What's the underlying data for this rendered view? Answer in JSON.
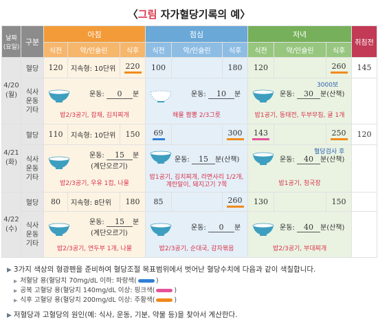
{
  "title": {
    "open": "〈",
    "highlight": "그림",
    "rest": " 자가혈당기록의 예〉"
  },
  "header": {
    "date": "날짜",
    "date_sub": "(요일)",
    "gubun": "구분",
    "am": "아침",
    "pm": "점심",
    "ev": "저녁",
    "bed": "취침전",
    "before": "식전",
    "insulin": "약/인슐린",
    "after": "식후"
  },
  "rows": [
    {
      "date": "4/20",
      "day": "(월)",
      "bg_label": "혈당",
      "sub_label_1": "식사",
      "sub_label_2": "운동",
      "sub_label_3": "기타",
      "am_before": "120",
      "am_insulin": "지속형: 10단위",
      "am_after": "220",
      "pm_before": "100",
      "pm_insulin": "",
      "pm_after": "180",
      "ev_before": "120",
      "ev_insulin": "",
      "ev_after": "260",
      "bed": "145",
      "am_ex_label": "운동:",
      "am_ex_val": "0",
      "am_ex_unit": "분",
      "am_meal": "밥2/3공기, 잡채, 김치찌개",
      "pm_ex_label": "운동:",
      "pm_ex_val": "10",
      "pm_ex_unit": "분",
      "pm_meal": "해물 짬뽕 2/3그릇",
      "ev_ex_label": "운동:",
      "ev_ex_val": "30",
      "ev_ex_unit": "분(산책)",
      "ev_extra": "3000보",
      "ev_meal": "밥1공기, 동태전, 두부무침, 귤 1개"
    },
    {
      "date": "4/21",
      "day": "(화)",
      "bg_label": "혈당",
      "sub_label_1": "식사",
      "sub_label_2": "운동",
      "sub_label_3": "기타",
      "am_before": "110",
      "am_insulin": "지속형: 10단위",
      "am_after": "150",
      "pm_before": "69",
      "pm_insulin": "",
      "pm_after": "300",
      "ev_before": "143",
      "ev_insulin": "",
      "ev_after": "250",
      "bed": "120",
      "am_ex_label": "운동:",
      "am_ex_val": "15",
      "am_ex_unit": "분",
      "am_ex_note": "(계단오르기)",
      "am_meal": "밥2/3공기, 우유 1컵, 나물",
      "pm_ex_label": "운동:",
      "pm_ex_val": "15",
      "pm_ex_unit": "분(산책)",
      "pm_meal_1": "밥1공기, 김치찌개, 라면사리 1/2개,",
      "pm_meal_2": "계란말이, 돼지고기 7쪽",
      "ev_ex_label": "운동:",
      "ev_ex_val": "40",
      "ev_ex_unit": "분(산책)",
      "ev_extra": "혈당검사 후",
      "ev_meal": "밥1공기, 청국장"
    },
    {
      "date": "4/22",
      "day": "(수)",
      "bg_label": "혈당",
      "sub_label_1": "식사",
      "sub_label_2": "운동",
      "sub_label_3": "기타",
      "am_before": "80",
      "am_insulin": "지속형: 8단위",
      "am_after": "180",
      "pm_before": "85",
      "pm_insulin": "",
      "pm_after": "260",
      "ev_before": "130",
      "ev_insulin": "",
      "ev_after": "150",
      "bed": "",
      "am_ex_label": "운동:",
      "am_ex_val": "15",
      "am_ex_unit": "분",
      "am_ex_note": "(계단오르기)",
      "am_meal": "밥2/3공기, 연두부 1개, 나물",
      "pm_ex_label": "운동:",
      "pm_ex_val": "0",
      "pm_ex_unit": "분",
      "pm_meal": "밥2/3공기, 순대국, 감자볶음",
      "ev_ex_label": "운동:",
      "ev_ex_val": "40",
      "ev_ex_unit": "분(산책)",
      "ev_meal": "밥2/3공기, 부대찌개"
    }
  ],
  "legend": {
    "main": "3가지 색상의 형광펜을 준비하여 혈당조절 목표범위에서 벗어난 혈당수치에 다음과 같이 색칠합니다.",
    "low": "저혈당 용(혈당치 70mg/dL 이하: 파랑색(",
    "fasting": "공복 고혈당 용(혈당치 140mg/dL 이상: 핑크색(",
    "post": "식후 고혈당 용(혈당치 200mg/dL 이상: 주황색(",
    "close": ")",
    "last": "저혈당과 고혈당의 원인(예: 식사, 운동, 기분, 약물 등)을 찾아서 계산한다.",
    "colors": {
      "blue": "#2f7fd6",
      "pink": "#e5529a",
      "orange": "#f08a1c"
    }
  }
}
